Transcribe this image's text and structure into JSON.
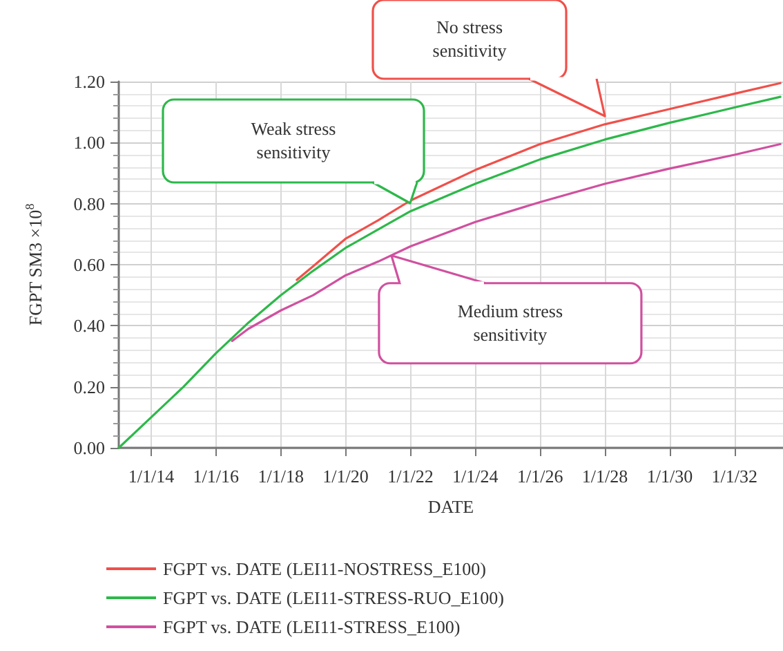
{
  "chart_data": {
    "type": "line",
    "xlabel": "DATE",
    "ylabel": "FGPT SM3 ×10$^{8}$",
    "x": [
      "2013-01-01",
      "2014-01-01",
      "2015-01-01",
      "2016-01-01",
      "2017-01-01",
      "2018-01-01",
      "2019-01-01",
      "2020-01-01",
      "2021-01-01",
      "2022-01-01",
      "2024-01-01",
      "2026-01-01",
      "2028-01-01",
      "2030-01-01",
      "2032-01-01",
      "2033-06-01"
    ],
    "series": [
      {
        "name": "FGPT vs. DATE (LEI11-NOSTRESS_E100)",
        "color": "#f0504a",
        "x": [
          "2018-07-01",
          "2019-01-01",
          "2020-01-01",
          "2021-01-01",
          "2022-01-01",
          "2024-01-01",
          "2026-01-01",
          "2028-01-01",
          "2030-01-01",
          "2032-01-01",
          "2033-06-01"
        ],
        "values": [
          0.55,
          0.595,
          0.685,
          0.745,
          0.81,
          0.91,
          0.995,
          1.06,
          1.11,
          1.16,
          1.195
        ]
      },
      {
        "name": "FGPT vs. DATE (LEI11-STRESS-RUO_E100)",
        "color": "#2db84a",
        "values": [
          0,
          0.1,
          0.2,
          0.31,
          0.41,
          0.5,
          0.58,
          0.655,
          0.715,
          0.775,
          0.865,
          0.945,
          1.01,
          1.065,
          1.115,
          1.15
        ]
      },
      {
        "name": "FGPT vs. DATE (LEI11-STRESS_E100)",
        "color": "#d0509f",
        "x": [
          "2016-07-01",
          "2017-01-01",
          "2018-01-01",
          "2019-01-01",
          "2020-01-01",
          "2021-01-01",
          "2022-01-01",
          "2024-01-01",
          "2026-01-01",
          "2028-01-01",
          "2030-01-01",
          "2032-01-01",
          "2033-06-01"
        ],
        "values": [
          0.35,
          0.39,
          0.45,
          0.5,
          0.565,
          0.61,
          0.66,
          0.74,
          0.805,
          0.865,
          0.915,
          0.96,
          0.995
        ]
      }
    ],
    "xlim": [
      "2013-01-01",
      "2033-07-01"
    ],
    "xticks": [
      {
        "value": "2014-01-01",
        "label": "1/1/14"
      },
      {
        "value": "2016-01-01",
        "label": "1/1/16"
      },
      {
        "value": "2018-01-01",
        "label": "1/1/18"
      },
      {
        "value": "2020-01-01",
        "label": "1/1/20"
      },
      {
        "value": "2022-01-01",
        "label": "1/1/22"
      },
      {
        "value": "2024-01-01",
        "label": "1/1/24"
      },
      {
        "value": "2026-01-01",
        "label": "1/1/26"
      },
      {
        "value": "2028-01-01",
        "label": "1/1/28"
      },
      {
        "value": "2030-01-01",
        "label": "1/1/30"
      },
      {
        "value": "2032-01-01",
        "label": "1/1/32"
      }
    ],
    "ylim": [
      0,
      1.2
    ],
    "yticks": [
      {
        "value": 0,
        "label": "0.00"
      },
      {
        "value": 0.2,
        "label": "0.20"
      },
      {
        "value": 0.4,
        "label": "0.40"
      },
      {
        "value": 0.6,
        "label": "0.60"
      },
      {
        "value": 0.8,
        "label": "0.80"
      },
      {
        "value": 1.0,
        "label": "1.00"
      },
      {
        "value": 1.2,
        "label": "1.20"
      }
    ],
    "annotations": [
      "No stress sensitivity",
      "Weak stress sensitivity",
      {
        "text": "Medium stress sensitivity",
        "x": "2021-06-01",
        "y": 0.63
      }
    ],
    "grid": true,
    "legend": "bottom",
    "marker": "none",
    "line_style": "solid"
  }
}
